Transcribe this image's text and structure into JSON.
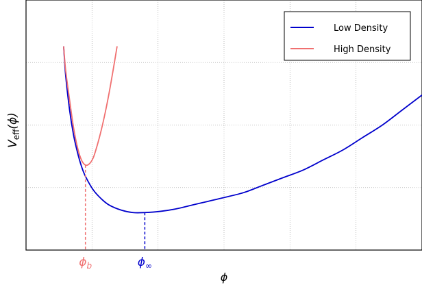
{
  "chart_data": {
    "type": "line",
    "xlabel": "ϕ",
    "ylabel_main": "V",
    "ylabel_sub": "eff",
    "ylabel_arg": "(ϕ)",
    "xlim": [
      0,
      1
    ],
    "ylim": [
      0,
      1
    ],
    "grid": true,
    "legend_position": "top-right",
    "series": [
      {
        "name": "Low Density",
        "color": "#0000cc",
        "x": [
          0.095,
          0.1,
          0.11,
          0.12,
          0.13,
          0.14,
          0.15,
          0.17,
          0.19,
          0.21,
          0.24,
          0.27,
          0.3,
          0.34,
          0.38,
          0.42,
          0.46,
          0.5,
          0.55,
          0.6,
          0.65,
          0.7,
          0.75,
          0.8,
          0.85,
          0.9,
          0.95,
          1.0
        ],
        "y": [
          0.815,
          0.7,
          0.56,
          0.46,
          0.39,
          0.335,
          0.295,
          0.24,
          0.205,
          0.18,
          0.16,
          0.15,
          0.15,
          0.155,
          0.165,
          0.18,
          0.195,
          0.21,
          0.23,
          0.26,
          0.29,
          0.32,
          0.36,
          0.4,
          0.45,
          0.5,
          0.56,
          0.62
        ]
      },
      {
        "name": "High Density",
        "color": "#f07070",
        "x": [
          0.095,
          0.1,
          0.11,
          0.12,
          0.13,
          0.14,
          0.15,
          0.16,
          0.17,
          0.18,
          0.19,
          0.2,
          0.21,
          0.22,
          0.23
        ],
        "y": [
          0.815,
          0.72,
          0.6,
          0.49,
          0.41,
          0.36,
          0.34,
          0.345,
          0.37,
          0.42,
          0.48,
          0.55,
          0.63,
          0.72,
          0.815
        ]
      }
    ],
    "markers": [
      {
        "label_main": "ϕ",
        "label_sub": "b",
        "x": 0.15,
        "y": 0.34,
        "color": "#f07070"
      },
      {
        "label_main": "ϕ",
        "label_sub": "∞",
        "x": 0.3,
        "y": 0.15,
        "color": "#0000cc"
      }
    ]
  }
}
